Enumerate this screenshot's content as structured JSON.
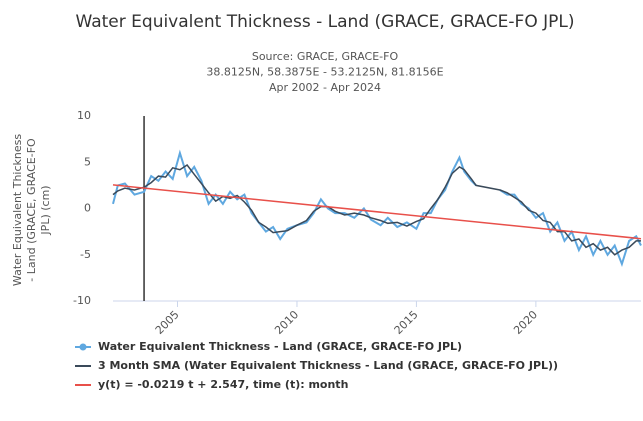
{
  "chart_data": {
    "type": "line",
    "title": "Water Equivalent Thickness - Land (GRACE, GRACE-FO JPL)",
    "subtitle_lines": [
      "Source: GRACE, GRACE-FO",
      "38.8125N, 58.3875E - 53.2125N, 81.8156E",
      "Apr 2002 - Apr 2024"
    ],
    "ylabel_lines": [
      "Water Equivalent Thickness",
      "- Land (GRACE, GRACE-FO",
      "JPL) (cm)"
    ],
    "xlim": [
      2002.3,
      2024.4
    ],
    "xticks": [
      2005,
      2010,
      2015,
      2020
    ],
    "ylim": [
      -10,
      10
    ],
    "yticks": [
      -10,
      -5,
      0,
      5,
      10
    ],
    "grid": false,
    "legend": "bottom",
    "plot_line_x": 2003.6,
    "series": [
      {
        "name": "Water Equivalent Thickness - Land (GRACE, GRACE-FO JPL)",
        "color": "#5fa8e0",
        "marker": true,
        "x": [
          2002.3,
          2002.5,
          2002.8,
          2003.2,
          2003.6,
          2003.9,
          2004.2,
          2004.5,
          2004.8,
          2005.1,
          2005.4,
          2005.7,
          2006.0,
          2006.3,
          2006.6,
          2006.9,
          2007.2,
          2007.5,
          2007.8,
          2008.1,
          2008.4,
          2008.7,
          2009.0,
          2009.3,
          2009.6,
          2010.0,
          2010.4,
          2010.7,
          2011.0,
          2011.3,
          2011.6,
          2012.0,
          2012.4,
          2012.8,
          2013.1,
          2013.5,
          2013.8,
          2014.2,
          2014.6,
          2015.0,
          2015.3,
          2015.6,
          2015.9,
          2016.2,
          2016.5,
          2016.8,
          2017.0,
          2017.3,
          2017.5,
          2018.0,
          2018.5,
          2018.8,
          2019.1,
          2019.4,
          2019.7,
          2020.0,
          2020.3,
          2020.6,
          2020.9,
          2021.2,
          2021.5,
          2021.8,
          2022.1,
          2022.4,
          2022.7,
          2023.0,
          2023.3,
          2023.6,
          2023.9,
          2024.2,
          2024.4
        ],
        "values": [
          0.5,
          2.5,
          2.7,
          1.5,
          1.8,
          3.5,
          3.0,
          4.0,
          3.2,
          6.0,
          3.5,
          4.5,
          3.0,
          0.5,
          1.5,
          0.5,
          1.8,
          1.0,
          1.5,
          -0.5,
          -1.5,
          -2.5,
          -2.0,
          -3.3,
          -2.2,
          -1.8,
          -1.5,
          -0.5,
          1.0,
          0.0,
          -0.5,
          -0.5,
          -1.0,
          0.0,
          -1.2,
          -1.8,
          -1.0,
          -2.0,
          -1.5,
          -2.2,
          -0.5,
          -0.5,
          1.0,
          2.0,
          4.0,
          5.5,
          4.0,
          3.0,
          2.5,
          null,
          2.0,
          1.5,
          1.5,
          0.5,
          0.0,
          -1.0,
          -0.5,
          -2.5,
          -1.5,
          -3.5,
          -2.5,
          -4.5,
          -3.0,
          -5.0,
          -3.5,
          -5.0,
          -4.0,
          -6.0,
          -3.5,
          -3.0,
          -4.0
        ]
      },
      {
        "name": "3 Month SMA (Water Equivalent Thickness - Land (GRACE, GRACE-FO JPL))",
        "color": "#3a4a5a",
        "marker": false,
        "x": [
          2002.3,
          2002.5,
          2002.8,
          2003.2,
          2003.6,
          2003.9,
          2004.2,
          2004.5,
          2004.8,
          2005.1,
          2005.4,
          2005.7,
          2006.0,
          2006.3,
          2006.6,
          2006.9,
          2007.2,
          2007.5,
          2007.8,
          2008.1,
          2008.4,
          2008.7,
          2009.0,
          2009.3,
          2009.6,
          2010.0,
          2010.4,
          2010.7,
          2011.0,
          2011.3,
          2011.6,
          2012.0,
          2012.4,
          2012.8,
          2013.1,
          2013.5,
          2013.8,
          2014.2,
          2014.6,
          2015.0,
          2015.3,
          2015.6,
          2015.9,
          2016.2,
          2016.5,
          2016.8,
          2017.0,
          2017.3,
          2017.5,
          2018.5,
          2018.8,
          2019.1,
          2019.4,
          2019.7,
          2020.0,
          2020.3,
          2020.6,
          2020.9,
          2021.2,
          2021.5,
          2021.8,
          2022.1,
          2022.4,
          2022.7,
          2023.0,
          2023.3,
          2023.6,
          2023.9,
          2024.2,
          2024.4
        ],
        "values": [
          1.5,
          1.9,
          2.2,
          2.0,
          2.3,
          2.8,
          3.5,
          3.4,
          4.4,
          4.2,
          4.7,
          3.7,
          2.7,
          1.7,
          0.8,
          1.3,
          1.1,
          1.4,
          0.7,
          -0.2,
          -1.5,
          -2.0,
          -2.6,
          -2.5,
          -2.4,
          -1.8,
          -1.3,
          -0.3,
          0.2,
          0.2,
          -0.3,
          -0.7,
          -0.5,
          -0.7,
          -1.0,
          -1.3,
          -1.6,
          -1.5,
          -1.9,
          -1.4,
          -1.1,
          0.0,
          1.0,
          2.3,
          3.8,
          4.5,
          4.2,
          3.2,
          2.5,
          2.0,
          1.7,
          1.2,
          0.7,
          -0.2,
          -0.5,
          -1.3,
          -1.5,
          -2.5,
          -2.5,
          -3.5,
          -3.3,
          -4.2,
          -3.8,
          -4.5,
          -4.2,
          -5.0,
          -4.5,
          -4.2,
          -3.5,
          -3.5
        ]
      },
      {
        "name": "y(t) = -0.0219 t + 2.547, time (t): month",
        "color": "#e8504a",
        "marker": false,
        "x": [
          2002.3,
          2024.4
        ],
        "values": [
          2.547,
          -3.26
        ]
      }
    ]
  }
}
